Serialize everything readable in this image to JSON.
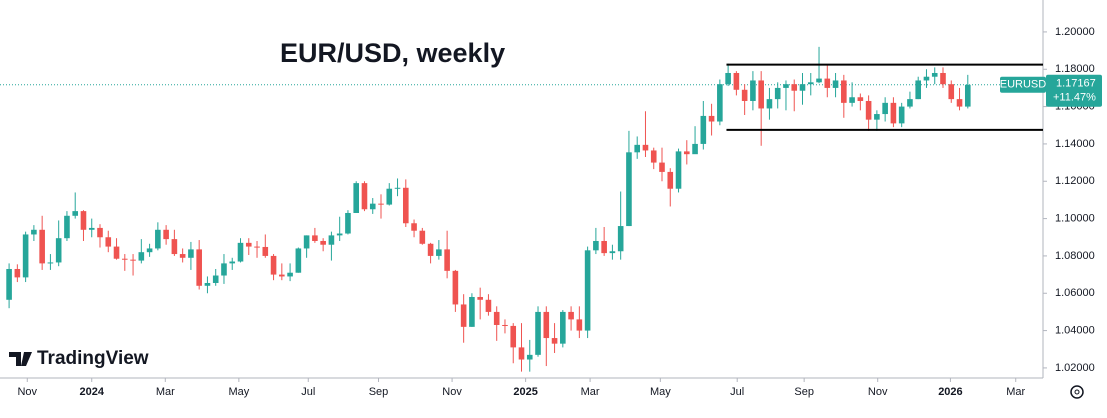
{
  "chart_data": {
    "type": "candlestick",
    "title": "EUR/USD, weekly",
    "watermark": "TradingView",
    "symbol": "EURUSD",
    "last_price": 1.17167,
    "change": {
      "value": 11.47,
      "label": "+11.47%"
    },
    "up_color": "#26a69a",
    "down_color": "#ef5350",
    "xlim": [
      -1.1,
      125.1
    ],
    "ylim": [
      1.0146,
      1.2171
    ],
    "xticks": [
      {
        "value": 2.2,
        "label": "Nov"
      },
      {
        "value": 10,
        "label": "2024"
      },
      {
        "value": 18.9,
        "label": "Mar"
      },
      {
        "value": 27.8,
        "label": "May"
      },
      {
        "value": 36.2,
        "label": "Jul"
      },
      {
        "value": 44.7,
        "label": "Sep"
      },
      {
        "value": 53.6,
        "label": "Nov"
      },
      {
        "value": 62.5,
        "label": "2025"
      },
      {
        "value": 70.3,
        "label": "Mar"
      },
      {
        "value": 78.8,
        "label": "May"
      },
      {
        "value": 88.1,
        "label": "Jul"
      },
      {
        "value": 96.2,
        "label": "Sep"
      },
      {
        "value": 105.1,
        "label": "Nov"
      },
      {
        "value": 113.9,
        "label": "2026"
      },
      {
        "value": 121.8,
        "label": "Mar"
      }
    ],
    "yticks": [
      {
        "value": 1.02,
        "label": "1.02000"
      },
      {
        "value": 1.04,
        "label": "1.04000"
      },
      {
        "value": 1.06,
        "label": "1.06000"
      },
      {
        "value": 1.08,
        "label": "1.08000"
      },
      {
        "value": 1.1,
        "label": "1.10000"
      },
      {
        "value": 1.12,
        "label": "1.12000"
      },
      {
        "value": 1.14,
        "label": "1.14000"
      },
      {
        "value": 1.16,
        "label": "1.16000"
      },
      {
        "value": 1.18,
        "label": "1.18000"
      },
      {
        "value": 1.2,
        "label": "1.20000"
      }
    ],
    "hlines": [
      1.1825,
      1.1475
    ],
    "hline_start": 86.8,
    "open": [
      1.0565,
      1.073,
      1.0685,
      1.0915,
      1.094,
      1.076,
      1.0765,
      1.0895,
      1.1015,
      1.104,
      1.094,
      1.095,
      1.09,
      1.085,
      1.0785,
      1.078,
      1.0775,
      1.082,
      1.084,
      1.094,
      1.089,
      1.081,
      1.079,
      1.0835,
      1.064,
      1.0655,
      1.0695,
      1.076,
      1.077,
      1.087,
      1.085,
      1.0848,
      1.08,
      1.07,
      1.069,
      1.071,
      1.084,
      1.091,
      1.088,
      1.086,
      1.091,
      1.092,
      1.103,
      1.119,
      1.105,
      1.108,
      1.1075,
      1.116,
      1.1165,
      1.0975,
      1.0935,
      1.0865,
      1.08,
      1.0835,
      1.072,
      1.054,
      1.042,
      1.058,
      1.0565,
      1.05,
      1.043,
      1.0425,
      1.031,
      1.0245,
      1.027,
      1.05,
      1.036,
      1.033,
      1.05,
      1.046,
      1.04,
      1.083,
      1.088,
      1.0815,
      1.0825,
      1.096,
      1.1355,
      1.1395,
      1.1365,
      1.13,
      1.125,
      1.116,
      1.136,
      1.1345,
      1.14,
      1.155,
      1.152,
      1.172,
      1.178,
      1.169,
      1.163,
      1.174,
      1.159,
      1.164,
      1.17,
      1.172,
      1.1685,
      1.172,
      1.173,
      1.175,
      1.17,
      1.174,
      1.162,
      1.165,
      1.163,
      1.153,
      1.156,
      1.162,
      1.151,
      1.16,
      1.164,
      1.174,
      1.176,
      1.178,
      1.172,
      1.164,
      1.16
    ],
    "high": [
      1.076,
      1.0755,
      1.093,
      1.0965,
      1.1015,
      1.081,
      1.099,
      1.104,
      1.114,
      1.1045,
      1.1,
      1.097,
      1.0935,
      1.0895,
      1.081,
      1.081,
      1.089,
      1.0865,
      1.098,
      1.0965,
      1.094,
      1.084,
      1.0875,
      1.0885,
      1.069,
      1.073,
      1.081,
      1.079,
      1.0895,
      1.0895,
      1.088,
      1.0915,
      1.081,
      1.076,
      1.076,
      1.0845,
      1.091,
      1.095,
      1.0895,
      1.093,
      1.101,
      1.1045,
      1.12,
      1.12,
      1.111,
      1.113,
      1.119,
      1.1215,
      1.121,
      1.0995,
      1.095,
      1.087,
      1.0885,
      1.0935,
      1.0725,
      1.0595,
      1.06,
      1.063,
      1.0595,
      1.053,
      1.046,
      1.044,
      1.044,
      1.035,
      1.053,
      1.053,
      1.044,
      1.051,
      1.053,
      1.053,
      1.085,
      1.095,
      1.0955,
      1.086,
      1.1145,
      1.147,
      1.144,
      1.1575,
      1.138,
      1.138,
      1.127,
      1.1375,
      1.142,
      1.1495,
      1.163,
      1.1615,
      1.1745,
      1.183,
      1.179,
      1.172,
      1.179,
      1.179,
      1.17,
      1.173,
      1.174,
      1.1745,
      1.178,
      1.178,
      1.192,
      1.182,
      1.178,
      1.177,
      1.173,
      1.167,
      1.166,
      1.158,
      1.165,
      1.165,
      1.162,
      1.168,
      1.176,
      1.18,
      1.181,
      1.181,
      1.174,
      1.17,
      1.177
    ],
    "low": [
      1.052,
      1.066,
      1.066,
      1.088,
      1.0725,
      1.0725,
      1.0745,
      1.088,
      1.1,
      1.088,
      1.09,
      1.0845,
      1.082,
      1.078,
      1.072,
      1.0695,
      1.076,
      1.0795,
      1.083,
      1.086,
      1.08,
      1.0765,
      1.0725,
      1.062,
      1.06,
      1.064,
      1.065,
      1.0725,
      1.0765,
      1.0805,
      1.079,
      1.079,
      1.067,
      1.067,
      1.0665,
      1.071,
      1.079,
      1.087,
      1.0825,
      1.0775,
      1.088,
      1.0915,
      1.103,
      1.104,
      1.1025,
      1.1,
      1.107,
      1.112,
      1.0955,
      1.09,
      1.086,
      1.076,
      1.078,
      1.068,
      1.05,
      1.0335,
      1.042,
      1.046,
      1.048,
      1.0345,
      1.0385,
      1.0225,
      1.018,
      1.018,
      1.026,
      1.021,
      1.028,
      1.031,
      1.04,
      1.036,
      1.036,
      1.081,
      1.08,
      1.078,
      1.078,
      1.096,
      1.132,
      1.133,
      1.1265,
      1.12,
      1.1065,
      1.114,
      1.129,
      1.135,
      1.137,
      1.1445,
      1.15,
      1.171,
      1.166,
      1.1555,
      1.158,
      1.139,
      1.153,
      1.159,
      1.158,
      1.1575,
      1.161,
      1.166,
      1.1725,
      1.165,
      1.165,
      1.154,
      1.16,
      1.158,
      1.147,
      1.147,
      1.152,
      1.149,
      1.149,
      1.159,
      1.164,
      1.17,
      1.172,
      1.17,
      1.162,
      1.158,
      1.159
    ],
    "close": [
      1.073,
      1.0685,
      1.0915,
      1.094,
      1.076,
      1.0765,
      1.0895,
      1.1015,
      1.104,
      1.094,
      1.095,
      1.09,
      1.085,
      1.0785,
      1.078,
      1.0775,
      1.082,
      1.084,
      1.094,
      1.089,
      1.081,
      1.079,
      1.0835,
      1.064,
      1.0655,
      1.0695,
      1.076,
      1.077,
      1.087,
      1.085,
      1.0848,
      1.08,
      1.07,
      1.069,
      1.071,
      1.084,
      1.091,
      1.088,
      1.086,
      1.091,
      1.092,
      1.103,
      1.119,
      1.105,
      1.108,
      1.1075,
      1.116,
      1.1165,
      1.0975,
      1.0935,
      1.0865,
      1.08,
      1.0835,
      1.072,
      1.054,
      1.042,
      1.058,
      1.0565,
      1.05,
      1.043,
      1.0425,
      1.031,
      1.0245,
      1.027,
      1.05,
      1.036,
      1.033,
      1.05,
      1.046,
      1.04,
      1.083,
      1.088,
      1.0815,
      1.0825,
      1.096,
      1.1355,
      1.1395,
      1.1365,
      1.13,
      1.125,
      1.116,
      1.136,
      1.1345,
      1.14,
      1.155,
      1.152,
      1.172,
      1.178,
      1.169,
      1.163,
      1.174,
      1.159,
      1.164,
      1.17,
      1.172,
      1.1685,
      1.172,
      1.173,
      1.175,
      1.17,
      1.174,
      1.162,
      1.165,
      1.163,
      1.153,
      1.156,
      1.162,
      1.151,
      1.16,
      1.164,
      1.174,
      1.176,
      1.178,
      1.172,
      1.164,
      1.16,
      1.17167
    ]
  }
}
